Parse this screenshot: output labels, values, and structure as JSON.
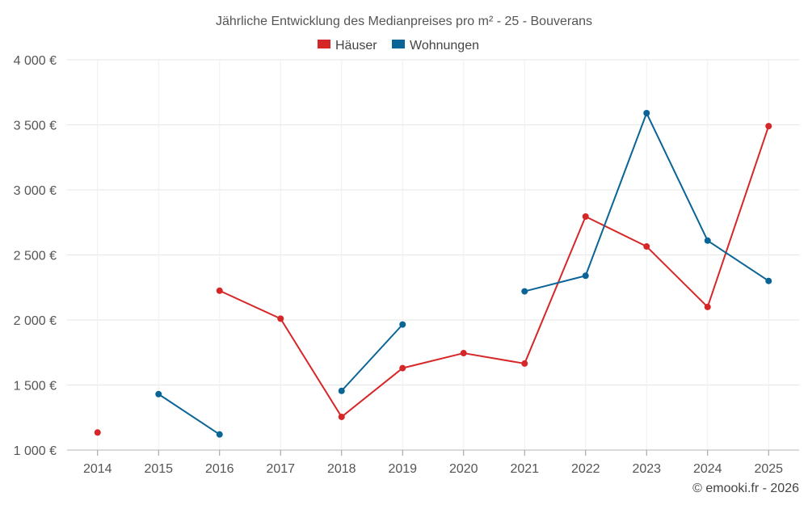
{
  "chart_data": {
    "type": "line",
    "title": "Jährliche Entwicklung des Medianpreises pro m² - 25 - Bouverans",
    "xlabel": "",
    "ylabel": "",
    "categories": [
      "2014",
      "2015",
      "2016",
      "2017",
      "2018",
      "2019",
      "2020",
      "2021",
      "2022",
      "2023",
      "2024",
      "2025"
    ],
    "ylim": [
      1000,
      4000
    ],
    "yticks": [
      1000,
      1500,
      2000,
      2500,
      3000,
      3500,
      4000
    ],
    "ytick_labels": [
      "1 000 €",
      "1 500 €",
      "2 000 €",
      "2 500 €",
      "3 000 €",
      "3 500 €",
      "4 000 €"
    ],
    "grid": true,
    "legend_position": "top-center",
    "series": [
      {
        "name": "Häuser",
        "color": "#d62728",
        "values": [
          1135,
          null,
          2225,
          2010,
          1255,
          1630,
          1745,
          1665,
          2795,
          2565,
          2100,
          3490
        ]
      },
      {
        "name": "Wohnungen",
        "color": "#0a6496",
        "values": [
          null,
          1430,
          1120,
          null,
          1455,
          1965,
          null,
          2220,
          2340,
          3590,
          2610,
          2300
        ]
      }
    ]
  },
  "credit": "© emooki.fr - 2026"
}
